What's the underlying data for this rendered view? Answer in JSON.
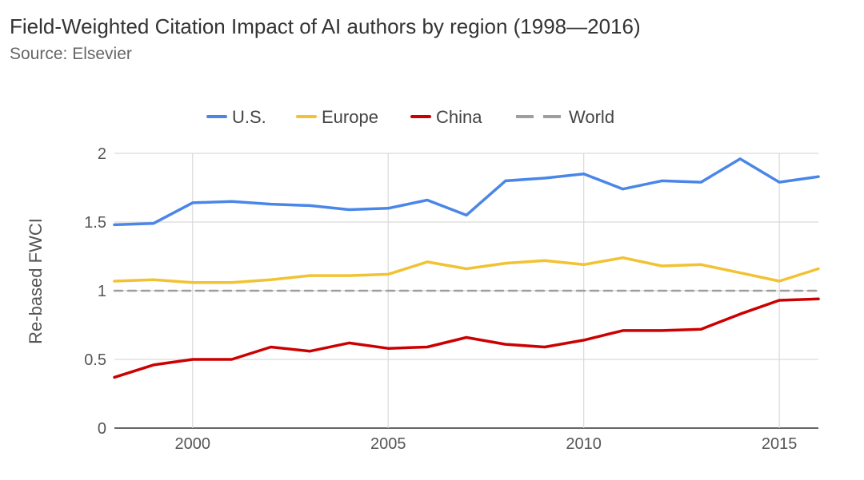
{
  "header": {
    "title": "Field-Weighted Citation Impact of AI authors by region (1998—2016)",
    "source": "Source: Elsevier"
  },
  "chart_data": {
    "type": "line",
    "title": "Field-Weighted Citation Impact of AI authors by region (1998—2016)",
    "subtitle": "Source: Elsevier",
    "xlabel": "",
    "ylabel": "Re-based FWCI",
    "x": [
      1998,
      1999,
      2000,
      2001,
      2002,
      2003,
      2004,
      2005,
      2006,
      2007,
      2008,
      2009,
      2010,
      2011,
      2012,
      2013,
      2014,
      2015,
      2016
    ],
    "xlim": [
      1998,
      2016
    ],
    "ylim": [
      0,
      2
    ],
    "x_ticks": [
      2000,
      2005,
      2010,
      2015
    ],
    "x_tick_labels": [
      "2000",
      "2005",
      "2010",
      "2015"
    ],
    "y_ticks": [
      0,
      0.5,
      1,
      1.5,
      2
    ],
    "y_tick_labels": [
      "0",
      "0.5",
      "1",
      "1.5",
      "2"
    ],
    "grid": true,
    "legend_position": "top-center",
    "series": [
      {
        "name": "U.S.",
        "color": "#4a86e8",
        "style": "solid",
        "values": [
          1.48,
          1.49,
          1.64,
          1.65,
          1.63,
          1.62,
          1.59,
          1.6,
          1.66,
          1.55,
          1.8,
          1.82,
          1.85,
          1.74,
          1.8,
          1.79,
          1.96,
          1.79,
          1.83
        ]
      },
      {
        "name": "Europe",
        "color": "#f1c232",
        "style": "solid",
        "values": [
          1.07,
          1.08,
          1.06,
          1.06,
          1.08,
          1.11,
          1.11,
          1.12,
          1.21,
          1.16,
          1.2,
          1.22,
          1.19,
          1.24,
          1.18,
          1.19,
          1.13,
          1.07,
          1.16
        ]
      },
      {
        "name": "China",
        "color": "#cc0000",
        "style": "solid",
        "values": [
          0.37,
          0.46,
          0.5,
          0.5,
          0.59,
          0.56,
          0.62,
          0.58,
          0.59,
          0.66,
          0.61,
          0.59,
          0.64,
          0.71,
          0.71,
          0.72,
          0.83,
          0.93,
          0.94
        ]
      },
      {
        "name": "World",
        "color": "#9e9e9e",
        "style": "dashed",
        "values": [
          1.0,
          1.0,
          1.0,
          1.0,
          1.0,
          1.0,
          1.0,
          1.0,
          1.0,
          1.0,
          1.0,
          1.0,
          1.0,
          1.0,
          1.0,
          1.0,
          1.0,
          1.0,
          1.0
        ]
      }
    ]
  }
}
